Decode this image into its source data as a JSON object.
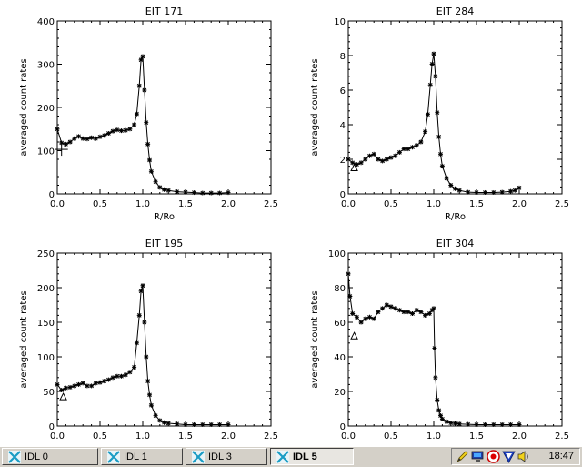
{
  "chart_data": [
    {
      "type": "scatter",
      "title": "EIT 171",
      "xlabel": "R/Ro",
      "ylabel": "averaged count rates",
      "xlim": [
        0,
        2.5
      ],
      "ylim": [
        0,
        400
      ],
      "x_ticks": [
        "0.0",
        "0.5",
        "1.0",
        "1.5",
        "2.0",
        "2.5"
      ],
      "y_ticks": [
        "0",
        "100",
        "200",
        "300",
        "400"
      ],
      "x": [
        0.0,
        0.05,
        0.1,
        0.15,
        0.2,
        0.25,
        0.3,
        0.35,
        0.4,
        0.45,
        0.5,
        0.55,
        0.6,
        0.65,
        0.7,
        0.75,
        0.8,
        0.85,
        0.9,
        0.93,
        0.96,
        0.98,
        1.0,
        1.02,
        1.04,
        1.06,
        1.08,
        1.1,
        1.15,
        1.2,
        1.25,
        1.3,
        1.4,
        1.5,
        1.6,
        1.7,
        1.8,
        1.9,
        2.0
      ],
      "y": [
        150,
        118,
        115,
        120,
        128,
        133,
        128,
        127,
        130,
        128,
        132,
        135,
        140,
        145,
        148,
        146,
        147,
        150,
        160,
        185,
        250,
        310,
        318,
        240,
        165,
        115,
        78,
        52,
        28,
        15,
        10,
        8,
        5,
        4,
        3,
        2,
        2,
        2,
        3
      ],
      "annotation": {
        "marker": "cross",
        "x": 0.05,
        "y": 103
      }
    },
    {
      "type": "scatter",
      "title": "EIT 284",
      "xlabel": "R/Ro",
      "ylabel": "averaged count rates",
      "xlim": [
        0,
        2.5
      ],
      "ylim": [
        0,
        10
      ],
      "x_ticks": [
        "0.0",
        "0.5",
        "1.0",
        "1.5",
        "2.0",
        "2.5"
      ],
      "y_ticks": [
        "0",
        "2",
        "4",
        "6",
        "8",
        "10"
      ],
      "x": [
        0.0,
        0.05,
        0.1,
        0.15,
        0.2,
        0.25,
        0.3,
        0.35,
        0.4,
        0.45,
        0.5,
        0.55,
        0.6,
        0.65,
        0.7,
        0.75,
        0.8,
        0.85,
        0.9,
        0.93,
        0.96,
        0.98,
        1.0,
        1.02,
        1.04,
        1.06,
        1.08,
        1.1,
        1.15,
        1.2,
        1.25,
        1.3,
        1.4,
        1.5,
        1.6,
        1.7,
        1.8,
        1.9,
        1.95,
        2.0
      ],
      "y": [
        2.0,
        1.8,
        1.7,
        1.8,
        2.0,
        2.2,
        2.3,
        2.0,
        1.9,
        2.0,
        2.1,
        2.2,
        2.4,
        2.6,
        2.6,
        2.7,
        2.8,
        3.0,
        3.6,
        4.6,
        6.3,
        7.5,
        8.1,
        6.8,
        4.7,
        3.3,
        2.3,
        1.6,
        0.9,
        0.5,
        0.3,
        0.2,
        0.1,
        0.08,
        0.08,
        0.08,
        0.1,
        0.15,
        0.2,
        0.35
      ],
      "annotation": {
        "marker": "triangle",
        "x": 0.07,
        "y": 1.5
      }
    },
    {
      "type": "scatter",
      "title": "EIT 195",
      "xlabel": "",
      "ylabel": "averaged count rates",
      "xlim": [
        0,
        2.5
      ],
      "ylim": [
        0,
        250
      ],
      "x_ticks": [
        "0.0",
        "0.5",
        "1.0",
        "1.5",
        "2.0",
        "2.5"
      ],
      "y_ticks": [
        "0",
        "50",
        "100",
        "150",
        "200",
        "250"
      ],
      "x": [
        0.0,
        0.05,
        0.1,
        0.15,
        0.2,
        0.25,
        0.3,
        0.35,
        0.4,
        0.45,
        0.5,
        0.55,
        0.6,
        0.65,
        0.7,
        0.75,
        0.8,
        0.85,
        0.9,
        0.93,
        0.96,
        0.98,
        1.0,
        1.02,
        1.04,
        1.06,
        1.08,
        1.1,
        1.15,
        1.2,
        1.25,
        1.3,
        1.4,
        1.5,
        1.6,
        1.7,
        1.8,
        1.9,
        2.0
      ],
      "y": [
        60,
        52,
        55,
        56,
        58,
        60,
        62,
        58,
        58,
        62,
        63,
        65,
        67,
        70,
        72,
        72,
        74,
        78,
        85,
        120,
        160,
        195,
        203,
        150,
        100,
        65,
        45,
        30,
        15,
        8,
        5,
        4,
        3,
        2,
        2,
        2,
        2,
        2,
        2
      ],
      "annotation": {
        "marker": "triangle",
        "x": 0.07,
        "y": 42
      }
    },
    {
      "type": "scatter",
      "title": "EIT 304",
      "xlabel": "",
      "ylabel": "averaged count rates",
      "xlim": [
        0,
        2.5
      ],
      "ylim": [
        0,
        100
      ],
      "x_ticks": [
        "0.0",
        "0.5",
        "1.0",
        "1.5",
        "2.0",
        "2.5"
      ],
      "y_ticks": [
        "0",
        "20",
        "40",
        "60",
        "80",
        "100"
      ],
      "x": [
        0.0,
        0.02,
        0.05,
        0.1,
        0.15,
        0.2,
        0.25,
        0.3,
        0.35,
        0.4,
        0.45,
        0.5,
        0.55,
        0.6,
        0.65,
        0.7,
        0.75,
        0.8,
        0.85,
        0.9,
        0.95,
        0.98,
        1.0,
        1.01,
        1.02,
        1.04,
        1.06,
        1.08,
        1.1,
        1.15,
        1.2,
        1.25,
        1.3,
        1.4,
        1.5,
        1.6,
        1.7,
        1.8,
        1.9,
        2.0
      ],
      "y": [
        88,
        75,
        65,
        63,
        60,
        62,
        63,
        62,
        66,
        68,
        70,
        69,
        68,
        67,
        66,
        66,
        65,
        67,
        66,
        64,
        65,
        67,
        68,
        45,
        28,
        15,
        9,
        6,
        4,
        2.5,
        1.8,
        1.5,
        1.2,
        1.0,
        0.8,
        0.8,
        0.8,
        0.8,
        0.8,
        0.8
      ],
      "annotation": {
        "marker": "triangle",
        "x": 0.07,
        "y": 52
      }
    }
  ],
  "taskbar": {
    "buttons": [
      {
        "label": "IDL 0",
        "active": false
      },
      {
        "label": "IDL 1",
        "active": false
      },
      {
        "label": "IDL 3",
        "active": false
      },
      {
        "label": "IDL 5",
        "active": true
      }
    ],
    "tray_icons": [
      "pencil-icon",
      "monitor-icon",
      "record-icon",
      "shield-icon",
      "volume-icon"
    ],
    "clock": "18:47"
  }
}
